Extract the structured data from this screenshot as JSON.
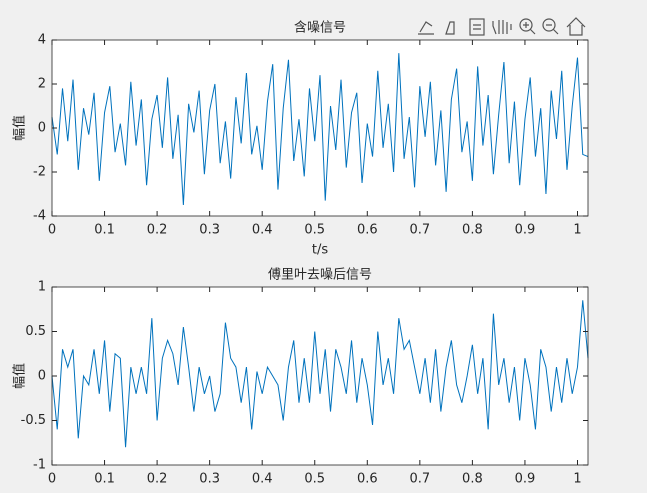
{
  "chart_data": [
    {
      "type": "line",
      "title": "含噪信号",
      "xlabel": "t/s",
      "ylabel": "幅值",
      "color": "#0072bd",
      "x": [
        0,
        0.01,
        0.02,
        0.03,
        0.04,
        0.05,
        0.06,
        0.07,
        0.08,
        0.09,
        0.1,
        0.11,
        0.12,
        0.13,
        0.14,
        0.15,
        0.16,
        0.17,
        0.18,
        0.19,
        0.2,
        0.21,
        0.22,
        0.23,
        0.24,
        0.25,
        0.26,
        0.27,
        0.28,
        0.29,
        0.3,
        0.31,
        0.32,
        0.33,
        0.34,
        0.35,
        0.36,
        0.37,
        0.38,
        0.39,
        0.4,
        0.41,
        0.42,
        0.43,
        0.44,
        0.45,
        0.46,
        0.47,
        0.48,
        0.49,
        0.5,
        0.51,
        0.52,
        0.53,
        0.54,
        0.55,
        0.56,
        0.57,
        0.58,
        0.59,
        0.6,
        0.61,
        0.62,
        0.63,
        0.64,
        0.65,
        0.66,
        0.67,
        0.68,
        0.69,
        0.7,
        0.71,
        0.72,
        0.73,
        0.74,
        0.75,
        0.76,
        0.77,
        0.78,
        0.79,
        0.8,
        0.81,
        0.82,
        0.83,
        0.84,
        0.85,
        0.86,
        0.87,
        0.88,
        0.89,
        0.9,
        0.91,
        0.92,
        0.93,
        0.94,
        0.95,
        0.96,
        0.97,
        0.98,
        0.99,
        1,
        1.01,
        1.02
      ],
      "values": [
        0.5,
        -1.2,
        1.8,
        -0.6,
        2.2,
        -1.9,
        0.9,
        -0.3,
        1.6,
        -2.4,
        0.7,
        1.9,
        -1.1,
        0.2,
        -1.7,
        2.1,
        -0.8,
        1.3,
        -2.6,
        0.4,
        1.5,
        -0.9,
        2.3,
        -1.4,
        0.6,
        -3.5,
        1.1,
        -0.2,
        1.7,
        -2.1,
        0.8,
        2.0,
        -1.6,
        0.3,
        -2.3,
        1.4,
        -0.7,
        2.5,
        -1.2,
        0.1,
        -1.9,
        1.2,
        2.9,
        -2.8,
        0.9,
        3.1,
        -1.5,
        0.4,
        -2.2,
        1.8,
        -0.6,
        2.4,
        -3.3,
        1.0,
        -1.0,
        2.2,
        -1.8,
        0.7,
        1.6,
        -2.5,
        0.2,
        -1.3,
        2.6,
        -0.9,
        1.1,
        -2.0,
        3.4,
        -1.4,
        0.5,
        -2.7,
        1.9,
        -0.4,
        2.1,
        -1.7,
        0.8,
        -2.9,
        1.3,
        2.7,
        -1.1,
        0.3,
        -2.4,
        2.8,
        -0.8,
        1.5,
        -2.1,
        0.6,
        3.0,
        -1.6,
        1.2,
        -2.6,
        0.4,
        2.3,
        -1.3,
        0.9,
        -3.0,
        1.7,
        -0.5,
        2.6,
        -1.9,
        1.0,
        3.2,
        -1.2,
        -1.3
      ],
      "xlim": [
        0,
        1.02
      ],
      "ylim": [
        -4,
        4
      ],
      "xticks": [
        0,
        0.1,
        0.2,
        0.3,
        0.4,
        0.5,
        0.6,
        0.7,
        0.8,
        0.9,
        1
      ],
      "yticks": [
        -4,
        -2,
        0,
        2,
        4
      ],
      "grid": false
    },
    {
      "type": "line",
      "title": "傅里叶去噪后信号",
      "ylabel": "幅值",
      "color": "#0072bd",
      "x": [
        0,
        0.01,
        0.02,
        0.03,
        0.04,
        0.05,
        0.06,
        0.07,
        0.08,
        0.09,
        0.1,
        0.11,
        0.12,
        0.13,
        0.14,
        0.15,
        0.16,
        0.17,
        0.18,
        0.19,
        0.2,
        0.21,
        0.22,
        0.23,
        0.24,
        0.25,
        0.26,
        0.27,
        0.28,
        0.29,
        0.3,
        0.31,
        0.32,
        0.33,
        0.34,
        0.35,
        0.36,
        0.37,
        0.38,
        0.39,
        0.4,
        0.41,
        0.42,
        0.43,
        0.44,
        0.45,
        0.46,
        0.47,
        0.48,
        0.49,
        0.5,
        0.51,
        0.52,
        0.53,
        0.54,
        0.55,
        0.56,
        0.57,
        0.58,
        0.59,
        0.6,
        0.61,
        0.62,
        0.63,
        0.64,
        0.65,
        0.66,
        0.67,
        0.68,
        0.69,
        0.7,
        0.71,
        0.72,
        0.73,
        0.74,
        0.75,
        0.76,
        0.77,
        0.78,
        0.79,
        0.8,
        0.81,
        0.82,
        0.83,
        0.84,
        0.85,
        0.86,
        0.87,
        0.88,
        0.89,
        0.9,
        0.91,
        0.92,
        0.93,
        0.94,
        0.95,
        0.96,
        0.97,
        0.98,
        0.99,
        1,
        1.01,
        1.02
      ],
      "values": [
        0,
        -0.6,
        0.3,
        0.1,
        0.3,
        -0.7,
        0,
        -0.1,
        0.3,
        -0.2,
        0.4,
        -0.4,
        0.25,
        0.2,
        -0.8,
        0.1,
        -0.2,
        0.1,
        -0.2,
        0.65,
        -0.5,
        0.2,
        0.4,
        0.25,
        -0.1,
        0.55,
        0.1,
        -0.4,
        0.1,
        -0.2,
        0,
        -0.4,
        -0.2,
        0.6,
        0.2,
        0.1,
        -0.3,
        0.1,
        -0.6,
        0.05,
        -0.2,
        0.1,
        0,
        -0.1,
        -0.5,
        0.1,
        0.4,
        -0.3,
        0.2,
        -0.3,
        0.5,
        -0.2,
        0.3,
        -0.4,
        0.3,
        0.1,
        -0.2,
        0.4,
        -0.3,
        0.2,
        -0.1,
        -0.55,
        0.5,
        -0.1,
        0.2,
        -0.2,
        0.65,
        0.3,
        0.4,
        0.1,
        -0.2,
        0.2,
        -0.3,
        0.3,
        -0.4,
        0.1,
        0.4,
        -0.1,
        -0.3,
        0,
        0.35,
        -0.2,
        0.2,
        -0.6,
        0.7,
        -0.1,
        0.2,
        -0.3,
        0.1,
        -0.5,
        0.2,
        -0.1,
        -0.6,
        0.3,
        0.1,
        -0.4,
        0.1,
        -0.3,
        0.2,
        -0.2,
        0.1,
        0.85,
        0.2
      ],
      "xlim": [
        0,
        1.02
      ],
      "ylim": [
        -1,
        1
      ],
      "xticks": [
        0,
        0.1,
        0.2,
        0.3,
        0.4,
        0.5,
        0.6,
        0.7,
        0.8,
        0.9,
        1
      ],
      "yticks": [
        -1,
        -0.5,
        0,
        0.5,
        1
      ],
      "grid": false
    }
  ]
}
